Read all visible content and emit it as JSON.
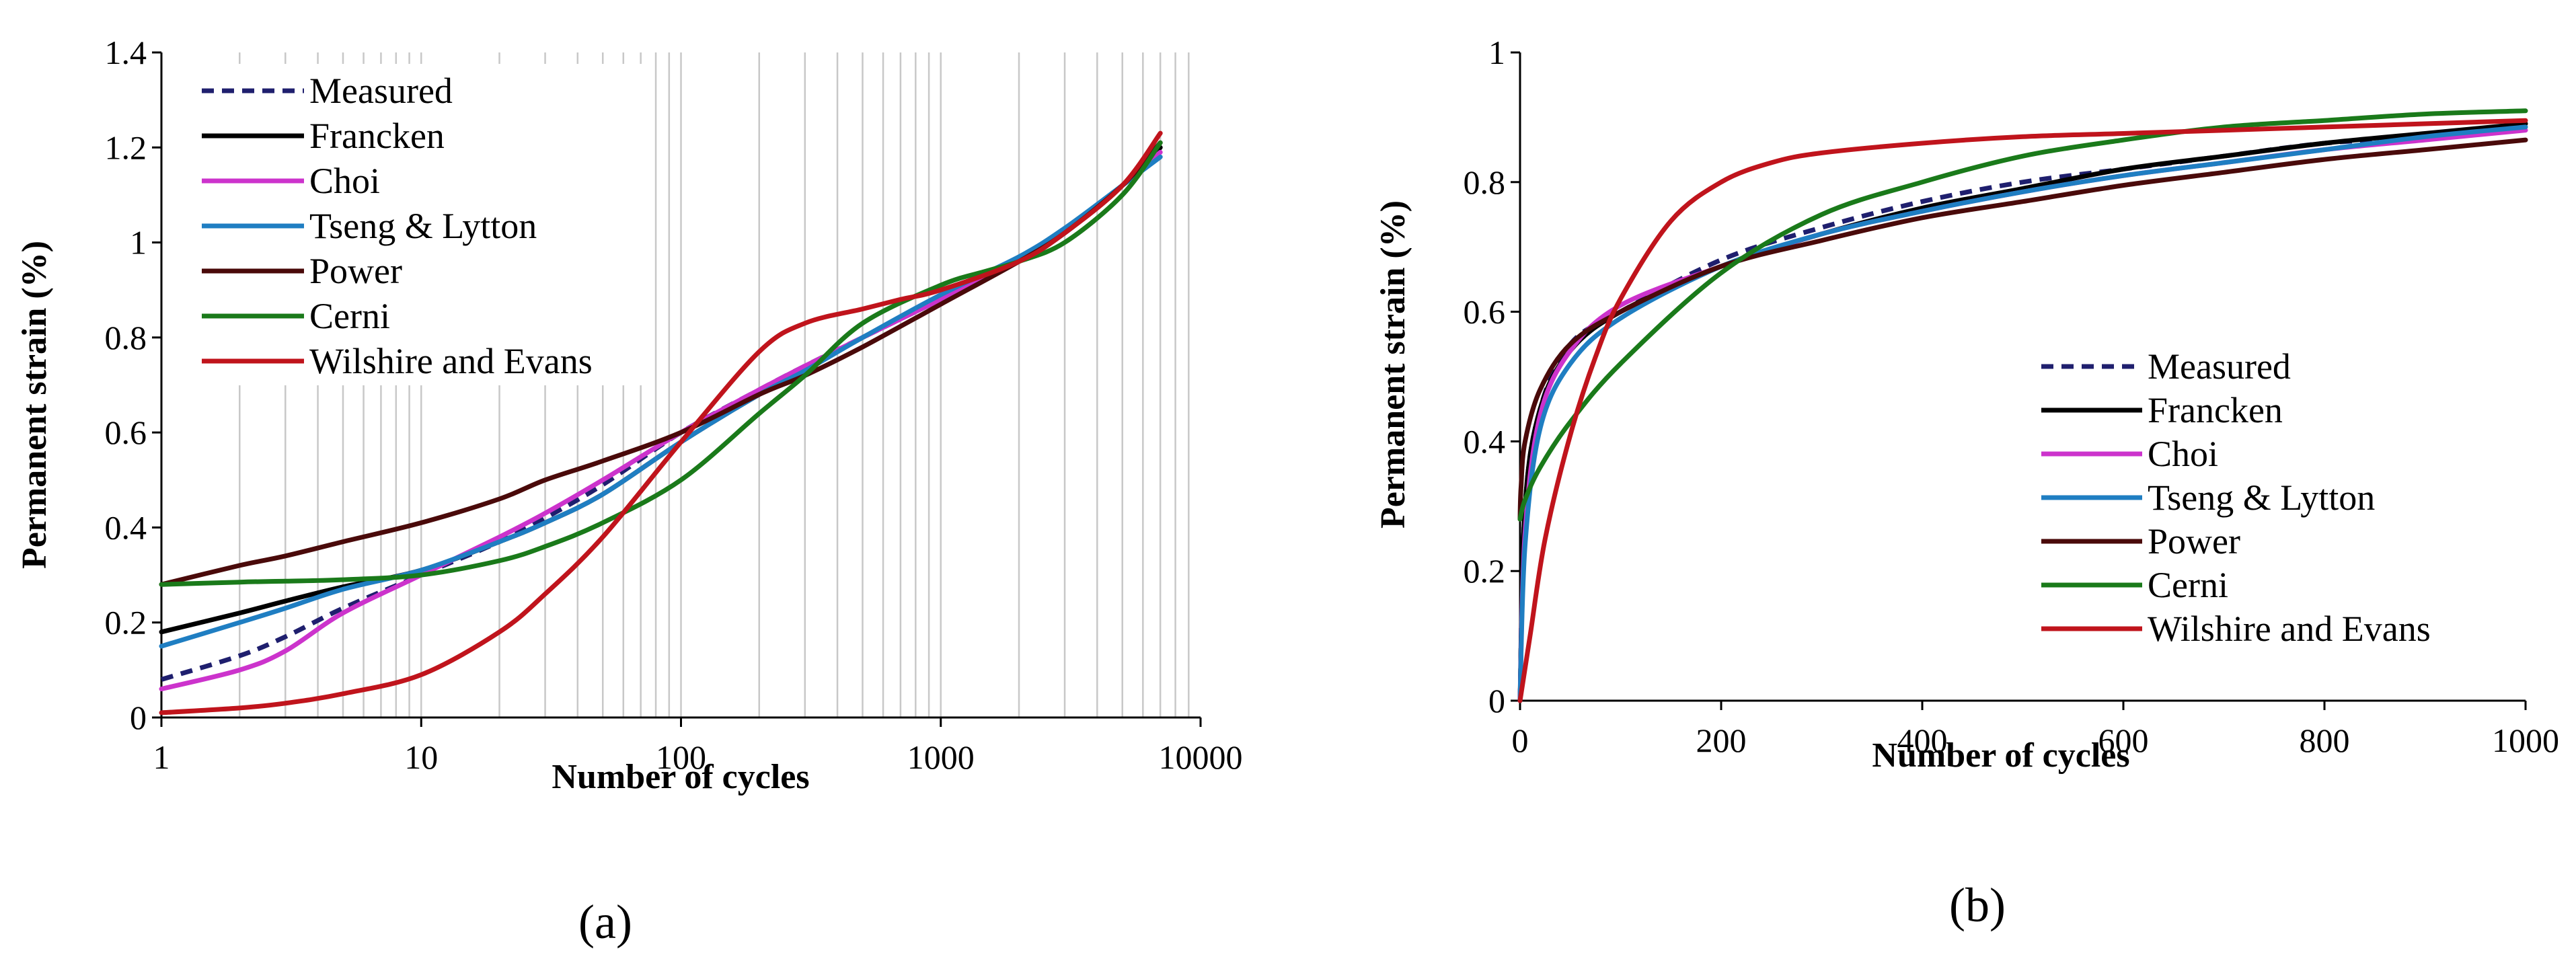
{
  "chart_data": [
    {
      "type": "line",
      "panel_label": "(a)",
      "xscale": "log",
      "xlim": [
        1,
        10000
      ],
      "ylim": [
        0,
        1.4
      ],
      "xlabel": "Number of cycles",
      "ylabel": "Permanent strain (%)",
      "x_ticks": [
        "1",
        "10",
        "100",
        "1000",
        "10000"
      ],
      "y_ticks": [
        "0",
        "0.2",
        "0.4",
        "0.6",
        "0.8",
        "1",
        "1.2",
        "1.4"
      ],
      "grid": "vertical minor log grid",
      "legend_position": "top-left",
      "series": [
        {
          "name": "Measured",
          "color": "#1f1f6e",
          "dash": true,
          "x": [
            1,
            2,
            3,
            5,
            10,
            20,
            30,
            50,
            100,
            200,
            300,
            500,
            1000,
            2000,
            3000,
            5000,
            7000
          ],
          "y": [
            0.08,
            0.13,
            0.17,
            0.23,
            0.3,
            0.37,
            0.42,
            0.49,
            0.6,
            0.69,
            0.74,
            0.8,
            0.88,
            0.96,
            1.02,
            1.12,
            1.2
          ]
        },
        {
          "name": "Francken",
          "color": "#000000",
          "x": [
            1,
            2,
            3,
            5,
            10,
            20,
            30,
            50,
            100,
            200,
            300,
            500,
            1000,
            2000,
            3000,
            5000,
            7000
          ],
          "y": [
            0.18,
            0.22,
            0.245,
            0.275,
            0.31,
            0.37,
            0.41,
            0.47,
            0.58,
            0.68,
            0.73,
            0.8,
            0.88,
            0.96,
            1.02,
            1.12,
            1.2
          ]
        },
        {
          "name": "Choi",
          "color": "#cc33cc",
          "x": [
            1,
            2,
            3,
            5,
            10,
            20,
            30,
            50,
            100,
            200,
            300,
            500,
            1000,
            2000,
            3000,
            5000,
            7000
          ],
          "y": [
            0.06,
            0.1,
            0.14,
            0.22,
            0.3,
            0.38,
            0.43,
            0.5,
            0.6,
            0.69,
            0.74,
            0.8,
            0.88,
            0.96,
            1.02,
            1.12,
            1.19
          ]
        },
        {
          "name": "Tseng & Lytton",
          "color": "#1f7ec2",
          "x": [
            1,
            2,
            3,
            5,
            10,
            20,
            30,
            50,
            100,
            200,
            300,
            500,
            1000,
            2000,
            3000,
            5000,
            7000
          ],
          "y": [
            0.15,
            0.2,
            0.23,
            0.27,
            0.31,
            0.37,
            0.41,
            0.47,
            0.58,
            0.68,
            0.73,
            0.8,
            0.89,
            0.97,
            1.03,
            1.12,
            1.18
          ]
        },
        {
          "name": "Power",
          "color": "#4a0a0a",
          "x": [
            1,
            2,
            3,
            5,
            10,
            20,
            30,
            50,
            100,
            200,
            300,
            500,
            1000,
            2000,
            3000,
            5000,
            7000
          ],
          "y": [
            0.28,
            0.32,
            0.34,
            0.37,
            0.41,
            0.46,
            0.5,
            0.54,
            0.6,
            0.68,
            0.72,
            0.78,
            0.87,
            0.96,
            1.02,
            1.12,
            1.21
          ]
        },
        {
          "name": "Cerni",
          "color": "#1a7a1a",
          "x": [
            1,
            2,
            3,
            5,
            10,
            20,
            30,
            50,
            100,
            200,
            300,
            500,
            1000,
            1500,
            2000,
            3000,
            5000,
            7000
          ],
          "y": [
            0.28,
            0.285,
            0.287,
            0.29,
            0.3,
            0.33,
            0.36,
            0.41,
            0.5,
            0.64,
            0.72,
            0.83,
            0.91,
            0.94,
            0.96,
            1.0,
            1.1,
            1.21
          ]
        },
        {
          "name": "Wilshire and Evans",
          "color": "#c0141c",
          "x": [
            1,
            2,
            3,
            5,
            10,
            20,
            30,
            50,
            100,
            200,
            300,
            500,
            700,
            1000,
            2000,
            3000,
            5000,
            7000
          ],
          "y": [
            0.01,
            0.02,
            0.03,
            0.05,
            0.09,
            0.18,
            0.26,
            0.38,
            0.58,
            0.77,
            0.83,
            0.86,
            0.88,
            0.9,
            0.96,
            1.02,
            1.12,
            1.23
          ]
        }
      ]
    },
    {
      "type": "line",
      "panel_label": "(b)",
      "xscale": "linear",
      "xlim": [
        0,
        1000
      ],
      "ylim": [
        0,
        1
      ],
      "xlabel": "Number of cycles",
      "ylabel": "Permanent strain (%)",
      "x_ticks": [
        "0",
        "200",
        "400",
        "600",
        "800",
        "1000"
      ],
      "y_ticks": [
        "0",
        "0.2",
        "0.4",
        "0.6",
        "0.8",
        "1"
      ],
      "grid": "none",
      "legend_position": "bottom-right",
      "series": [
        {
          "name": "Measured",
          "color": "#1f1f6e",
          "dash": true,
          "x": [
            0,
            5,
            20,
            50,
            100,
            200,
            300,
            400,
            500,
            600,
            700,
            800,
            900,
            1000
          ],
          "y": [
            0.0,
            0.3,
            0.45,
            0.55,
            0.6,
            0.68,
            0.73,
            0.77,
            0.8,
            0.82,
            0.84,
            0.86,
            0.87,
            0.89
          ]
        },
        {
          "name": "Francken",
          "color": "#000000",
          "x": [
            0,
            5,
            20,
            50,
            100,
            200,
            300,
            400,
            500,
            600,
            700,
            800,
            900,
            1000
          ],
          "y": [
            0.0,
            0.3,
            0.45,
            0.54,
            0.6,
            0.67,
            0.72,
            0.76,
            0.79,
            0.82,
            0.84,
            0.86,
            0.875,
            0.89
          ]
        },
        {
          "name": "Choi",
          "color": "#cc33cc",
          "x": [
            0,
            5,
            20,
            50,
            100,
            200,
            300,
            400,
            500,
            600,
            700,
            800,
            900,
            1000
          ],
          "y": [
            0.0,
            0.26,
            0.44,
            0.54,
            0.61,
            0.67,
            0.72,
            0.755,
            0.785,
            0.81,
            0.83,
            0.85,
            0.865,
            0.88
          ]
        },
        {
          "name": "Tseng & Lytton",
          "color": "#1f7ec2",
          "x": [
            0,
            5,
            20,
            50,
            100,
            200,
            300,
            400,
            500,
            600,
            700,
            800,
            900,
            1000
          ],
          "y": [
            0.0,
            0.24,
            0.42,
            0.52,
            0.59,
            0.67,
            0.72,
            0.755,
            0.785,
            0.81,
            0.83,
            0.85,
            0.87,
            0.885
          ]
        },
        {
          "name": "Power",
          "color": "#4a0a0a",
          "x": [
            0,
            1,
            5,
            20,
            50,
            100,
            200,
            300,
            400,
            500,
            600,
            700,
            800,
            900,
            1000
          ],
          "y": [
            0.28,
            0.33,
            0.4,
            0.48,
            0.55,
            0.6,
            0.67,
            0.71,
            0.745,
            0.77,
            0.795,
            0.815,
            0.835,
            0.85,
            0.865
          ]
        },
        {
          "name": "Cerni",
          "color": "#1a7a1a",
          "x": [
            0,
            5,
            20,
            50,
            100,
            200,
            300,
            400,
            500,
            600,
            700,
            800,
            900,
            1000
          ],
          "y": [
            0.28,
            0.31,
            0.36,
            0.43,
            0.52,
            0.66,
            0.75,
            0.8,
            0.84,
            0.865,
            0.885,
            0.895,
            0.905,
            0.91
          ]
        },
        {
          "name": "Wilshire and Evans",
          "color": "#c0141c",
          "x": [
            0,
            10,
            25,
            50,
            75,
            100,
            150,
            200,
            250,
            300,
            400,
            500,
            600,
            700,
            800,
            900,
            1000
          ],
          "y": [
            0.0,
            0.1,
            0.25,
            0.41,
            0.53,
            0.62,
            0.74,
            0.8,
            0.83,
            0.845,
            0.86,
            0.87,
            0.875,
            0.88,
            0.885,
            0.89,
            0.895
          ]
        }
      ]
    }
  ]
}
